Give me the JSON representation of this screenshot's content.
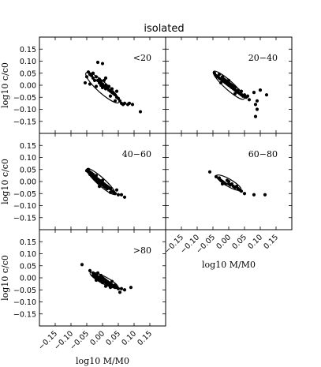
{
  "title": "isolated",
  "chart_data": {
    "type": "scatter",
    "xlabel": "log10 M/M0",
    "ylabel": "log10 c/c0",
    "xlim": [
      -0.2,
      0.2
    ],
    "ylim": [
      -0.2,
      0.2
    ],
    "xticks": [
      "−0.15",
      "−0.10",
      "−0.05",
      "0.00",
      "0.05",
      "0.10",
      "0.15"
    ],
    "yticks": [
      "0.15",
      "0.10",
      "0.05",
      "0.00",
      "−0.05",
      "−0.10",
      "−0.15"
    ],
    "grid": false,
    "panels": [
      {
        "label": "<20",
        "ellipse": {
          "cx": 0.0,
          "cy": -0.01,
          "semi_major": 0.07,
          "semi_minor": 0.022,
          "angle_deg": -42
        },
        "points": [
          [
            -0.05,
            0.035
          ],
          [
            -0.045,
            0.055
          ],
          [
            -0.04,
            0.045
          ],
          [
            -0.035,
            0.04
          ],
          [
            -0.03,
            0.05
          ],
          [
            -0.03,
            0.03
          ],
          [
            -0.025,
            0.02
          ],
          [
            -0.02,
            0.035
          ],
          [
            -0.015,
            0.02
          ],
          [
            -0.01,
            0.01
          ],
          [
            -0.01,
            0.025
          ],
          [
            -0.005,
            0.015
          ],
          [
            -0.005,
            0.0
          ],
          [
            0.0,
            0.005
          ],
          [
            0.0,
            -0.01
          ],
          [
            0.005,
            -0.005
          ],
          [
            0.01,
            0.0
          ],
          [
            0.01,
            -0.015
          ],
          [
            0.015,
            -0.01
          ],
          [
            0.02,
            -0.02
          ],
          [
            0.02,
            -0.005
          ],
          [
            0.025,
            -0.025
          ],
          [
            0.03,
            -0.015
          ],
          [
            0.03,
            -0.03
          ],
          [
            0.035,
            -0.035
          ],
          [
            0.04,
            -0.04
          ],
          [
            0.045,
            -0.05
          ],
          [
            0.05,
            -0.055
          ],
          [
            0.055,
            -0.065
          ],
          [
            0.06,
            -0.075
          ],
          [
            0.065,
            -0.08
          ],
          [
            0.07,
            -0.075
          ],
          [
            0.08,
            -0.08
          ],
          [
            0.085,
            -0.075
          ],
          [
            0.095,
            -0.08
          ],
          [
            0.12,
            -0.11
          ],
          [
            -0.015,
            0.095
          ],
          [
            0.0,
            0.09
          ],
          [
            -0.04,
            0.005
          ],
          [
            -0.055,
            0.01
          ],
          [
            0.01,
            0.03
          ],
          [
            0.045,
            -0.025
          ],
          [
            -0.02,
            -0.005
          ],
          [
            0.005,
            0.02
          ],
          [
            0.04,
            -0.065
          ],
          [
            0.025,
            -0.045
          ]
        ]
      },
      {
        "label": "20−40",
        "ellipse": {
          "cx": 0.0,
          "cy": 0.0,
          "semi_major": 0.065,
          "semi_minor": 0.018,
          "angle_deg": -42
        },
        "points": [
          [
            -0.04,
            0.04
          ],
          [
            -0.035,
            0.035
          ],
          [
            -0.03,
            0.03
          ],
          [
            -0.03,
            0.045
          ],
          [
            -0.025,
            0.025
          ],
          [
            -0.02,
            0.02
          ],
          [
            -0.02,
            0.035
          ],
          [
            -0.015,
            0.015
          ],
          [
            -0.015,
            0.025
          ],
          [
            -0.01,
            0.01
          ],
          [
            -0.01,
            0.02
          ],
          [
            -0.005,
            0.005
          ],
          [
            -0.005,
            0.015
          ],
          [
            0.0,
            0.0
          ],
          [
            0.0,
            0.01
          ],
          [
            0.005,
            -0.005
          ],
          [
            0.005,
            0.005
          ],
          [
            0.01,
            -0.01
          ],
          [
            0.01,
            0.0
          ],
          [
            0.015,
            -0.015
          ],
          [
            0.015,
            -0.005
          ],
          [
            0.02,
            -0.02
          ],
          [
            0.02,
            -0.01
          ],
          [
            0.025,
            -0.025
          ],
          [
            0.03,
            -0.03
          ],
          [
            0.03,
            -0.02
          ],
          [
            0.035,
            -0.035
          ],
          [
            0.04,
            -0.04
          ],
          [
            0.045,
            -0.045
          ],
          [
            0.05,
            -0.04
          ],
          [
            0.055,
            -0.05
          ],
          [
            0.06,
            -0.045
          ],
          [
            -0.025,
            0.01
          ],
          [
            0.0,
            0.02
          ],
          [
            0.02,
            -0.035
          ],
          [
            0.08,
            -0.03
          ],
          [
            0.085,
            -0.08
          ],
          [
            0.09,
            -0.1
          ],
          [
            0.085,
            -0.13
          ],
          [
            0.1,
            -0.02
          ],
          [
            0.12,
            -0.04
          ],
          [
            0.09,
            -0.065
          ],
          [
            -0.045,
            0.05
          ],
          [
            0.04,
            -0.025
          ],
          [
            0.065,
            -0.06
          ]
        ]
      },
      {
        "label": "40−60",
        "ellipse": {
          "cx": -0.005,
          "cy": 0.0,
          "semi_major": 0.06,
          "semi_minor": 0.016,
          "angle_deg": -42
        },
        "points": [
          [
            -0.05,
            0.045
          ],
          [
            -0.045,
            0.05
          ],
          [
            -0.045,
            0.04
          ],
          [
            -0.04,
            0.04
          ],
          [
            -0.04,
            0.03
          ],
          [
            -0.035,
            0.035
          ],
          [
            -0.035,
            0.025
          ],
          [
            -0.03,
            0.03
          ],
          [
            -0.03,
            0.02
          ],
          [
            -0.025,
            0.02
          ],
          [
            -0.025,
            0.01
          ],
          [
            -0.02,
            0.015
          ],
          [
            -0.02,
            0.005
          ],
          [
            -0.015,
            0.01
          ],
          [
            -0.015,
            0.0
          ],
          [
            -0.01,
            0.005
          ],
          [
            -0.01,
            -0.005
          ],
          [
            -0.005,
            0.0
          ],
          [
            -0.005,
            -0.01
          ],
          [
            0.0,
            -0.005
          ],
          [
            0.0,
            -0.015
          ],
          [
            0.005,
            -0.01
          ],
          [
            0.005,
            -0.02
          ],
          [
            0.01,
            -0.015
          ],
          [
            0.01,
            -0.025
          ],
          [
            0.015,
            -0.02
          ],
          [
            0.015,
            -0.03
          ],
          [
            0.02,
            -0.025
          ],
          [
            0.025,
            -0.03
          ],
          [
            0.03,
            -0.04
          ],
          [
            0.035,
            -0.045
          ],
          [
            0.04,
            -0.05
          ],
          [
            0.05,
            -0.055
          ],
          [
            0.06,
            -0.055
          ],
          [
            0.07,
            -0.065
          ],
          [
            -0.02,
            0.025
          ],
          [
            0.0,
            0.005
          ],
          [
            0.025,
            -0.045
          ],
          [
            0.045,
            -0.035
          ],
          [
            -0.01,
            -0.02
          ]
        ]
      },
      {
        "label": "60−80",
        "ellipse": {
          "cx": 0.0,
          "cy": -0.005,
          "semi_major": 0.045,
          "semi_minor": 0.015,
          "angle_deg": -30
        },
        "points": [
          [
            -0.06,
            0.04
          ],
          [
            -0.04,
            0.02
          ],
          [
            -0.03,
            0.015
          ],
          [
            -0.025,
            0.005
          ],
          [
            -0.02,
            0.0
          ],
          [
            -0.015,
            -0.005
          ],
          [
            -0.01,
            -0.01
          ],
          [
            -0.005,
            0.005
          ],
          [
            0.0,
            -0.01
          ],
          [
            0.005,
            -0.015
          ],
          [
            0.01,
            -0.01
          ],
          [
            0.015,
            -0.02
          ],
          [
            0.02,
            -0.025
          ],
          [
            0.025,
            -0.02
          ],
          [
            0.03,
            -0.03
          ],
          [
            0.035,
            -0.035
          ],
          [
            0.04,
            -0.04
          ],
          [
            0.05,
            -0.05
          ],
          [
            0.08,
            -0.055
          ],
          [
            0.115,
            -0.055
          ],
          [
            -0.02,
            -0.01
          ],
          [
            0.0,
            0.0
          ]
        ]
      },
      {
        "label": ">80",
        "ellipse": {
          "cx": 0.005,
          "cy": -0.01,
          "semi_major": 0.05,
          "semi_minor": 0.015,
          "angle_deg": -28
        },
        "points": [
          [
            -0.065,
            0.055
          ],
          [
            -0.04,
            0.03
          ],
          [
            -0.03,
            0.02
          ],
          [
            -0.025,
            0.015
          ],
          [
            -0.025,
            0.005
          ],
          [
            -0.02,
            0.01
          ],
          [
            -0.02,
            0.0
          ],
          [
            -0.015,
            0.005
          ],
          [
            -0.015,
            -0.005
          ],
          [
            -0.01,
            0.0
          ],
          [
            -0.01,
            -0.01
          ],
          [
            -0.005,
            -0.005
          ],
          [
            -0.005,
            -0.015
          ],
          [
            0.0,
            -0.01
          ],
          [
            0.0,
            -0.02
          ],
          [
            0.005,
            -0.015
          ],
          [
            0.005,
            -0.005
          ],
          [
            0.01,
            -0.02
          ],
          [
            0.01,
            -0.01
          ],
          [
            0.015,
            -0.025
          ],
          [
            0.015,
            -0.015
          ],
          [
            0.02,
            -0.02
          ],
          [
            0.02,
            -0.03
          ],
          [
            0.025,
            -0.025
          ],
          [
            0.03,
            -0.03
          ],
          [
            0.035,
            -0.035
          ],
          [
            0.04,
            -0.04
          ],
          [
            0.045,
            -0.04
          ],
          [
            0.05,
            -0.045
          ],
          [
            0.06,
            -0.045
          ],
          [
            0.07,
            -0.05
          ],
          [
            0.09,
            -0.04
          ],
          [
            -0.03,
            0.01
          ],
          [
            -0.015,
            0.02
          ],
          [
            0.0,
            0.0
          ],
          [
            0.025,
            -0.04
          ],
          [
            0.04,
            -0.03
          ],
          [
            0.055,
            -0.06
          ],
          [
            -0.005,
            0.01
          ],
          [
            0.01,
            -0.035
          ],
          [
            0.03,
            -0.015
          ],
          [
            -0.02,
            -0.01
          ]
        ]
      }
    ]
  }
}
